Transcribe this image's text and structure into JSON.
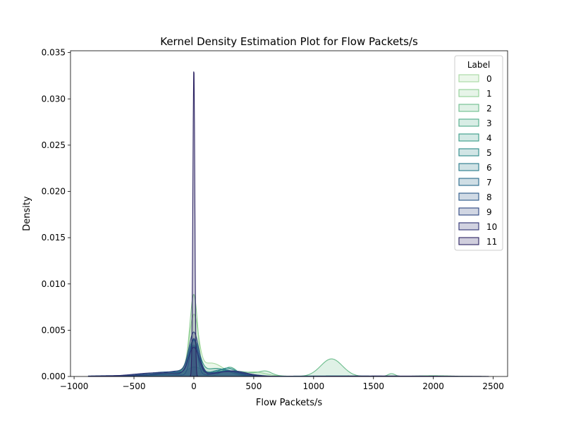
{
  "chart_data": {
    "type": "area",
    "title": "Kernel Density Estimation Plot for Flow Packets/s",
    "xlabel": "Flow Packets/s",
    "ylabel": "Density",
    "xlim": [
      -1030,
      2620
    ],
    "ylim": [
      0,
      0.0352
    ],
    "xticks": [
      -1000,
      -500,
      0,
      500,
      1000,
      1500,
      2000,
      2500
    ],
    "xtick_labels": [
      "−1000",
      "−500",
      "0",
      "500",
      "1000",
      "1500",
      "2000",
      "2500"
    ],
    "yticks": [
      0,
      0.005,
      0.01,
      0.015,
      0.02,
      0.025,
      0.03,
      0.035
    ],
    "ytick_labels": [
      "0.000",
      "0.005",
      "0.010",
      "0.015",
      "0.020",
      "0.025",
      "0.030",
      "0.035"
    ],
    "grid": false,
    "legend": {
      "title": "Label",
      "position": "top-right"
    },
    "series": [
      {
        "name": "0",
        "color": "#a6d9a0",
        "components": [
          [
            0,
            38,
            0.006
          ],
          [
            150,
            100,
            0.0014
          ],
          [
            500,
            100,
            0.0005
          ],
          [
            -100,
            120,
            0.0004
          ]
        ]
      },
      {
        "name": "1",
        "color": "#8fcf94",
        "components": [
          [
            0,
            32,
            0.0082
          ],
          [
            -60,
            70,
            0.0008
          ],
          [
            250,
            120,
            0.0006
          ],
          [
            -350,
            200,
            0.0002
          ]
        ]
      },
      {
        "name": "2",
        "color": "#6cbd8c",
        "components": [
          [
            1150,
            90,
            0.0019
          ],
          [
            600,
            50,
            0.0004
          ],
          [
            1650,
            30,
            0.0003
          ],
          [
            0,
            60,
            0.0008
          ],
          [
            300,
            200,
            0.0006
          ],
          [
            -300,
            150,
            0.0002
          ],
          [
            2000,
            150,
            8e-05
          ]
        ]
      },
      {
        "name": "3",
        "color": "#4fab88",
        "components": [
          [
            0,
            40,
            0.0032
          ],
          [
            300,
            60,
            0.001
          ],
          [
            -150,
            120,
            0.0004
          ]
        ]
      },
      {
        "name": "4",
        "color": "#389a87",
        "components": [
          [
            0,
            45,
            0.0035
          ],
          [
            200,
            100,
            0.0008
          ],
          [
            -100,
            150,
            0.0005
          ]
        ]
      },
      {
        "name": "5",
        "color": "#2c8a88",
        "components": [
          [
            0,
            50,
            0.003
          ],
          [
            280,
            80,
            0.0009
          ],
          [
            -200,
            180,
            0.0004
          ]
        ]
      },
      {
        "name": "6",
        "color": "#27798a",
        "components": [
          [
            0,
            40,
            0.0036
          ],
          [
            250,
            90,
            0.0007
          ],
          [
            -150,
            200,
            0.0004
          ],
          [
            1200,
            400,
            6e-05
          ]
        ]
      },
      {
        "name": "7",
        "color": "#26688a",
        "components": [
          [
            0,
            30,
            0.004
          ],
          [
            280,
            100,
            0.0006
          ],
          [
            -300,
            250,
            0.0002
          ]
        ]
      },
      {
        "name": "8",
        "color": "#285687",
        "components": [
          [
            0,
            35,
            0.0037
          ],
          [
            -200,
            200,
            0.0005
          ],
          [
            300,
            150,
            0.0005
          ]
        ]
      },
      {
        "name": "9",
        "color": "#2c4480",
        "components": [
          [
            0,
            40,
            0.0043
          ],
          [
            -100,
            150,
            0.0006
          ],
          [
            300,
            120,
            0.0005
          ],
          [
            -600,
            250,
            0.0001
          ]
        ]
      },
      {
        "name": "10",
        "color": "#2e3274",
        "components": [
          [
            0,
            45,
            0.003
          ],
          [
            -300,
            200,
            0.0004
          ],
          [
            320,
            120,
            0.0006
          ],
          [
            1600,
            450,
            5e-05
          ]
        ]
      },
      {
        "name": "11",
        "color": "#2b2262",
        "components": [
          [
            0,
            8,
            0.0336
          ]
        ]
      }
    ]
  }
}
